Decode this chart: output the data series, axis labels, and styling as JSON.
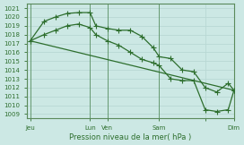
{
  "title": "Pression niveau de la mer( hPa )",
  "bg_color": "#cce8e4",
  "grid_color": "#b8d8d4",
  "line_color": "#2d6e2d",
  "spine_color": "#5a8a5a",
  "ylim": [
    1008.5,
    1021.5
  ],
  "yticks": [
    1009,
    1010,
    1011,
    1012,
    1013,
    1014,
    1015,
    1016,
    1017,
    1018,
    1019,
    1020,
    1021
  ],
  "xlim": [
    0,
    18
  ],
  "xtick_positions": [
    0.3,
    5.5,
    7.0,
    11.5,
    15.5,
    18.0
  ],
  "xtick_labels": [
    "Jeu",
    "Lun",
    "Ven",
    "Sam",
    "",
    "Dim"
  ],
  "vline_positions": [
    0.3,
    5.5,
    7.0,
    11.5,
    18.0
  ],
  "line1_x": [
    0.3,
    1.5,
    2.5,
    3.5,
    4.5,
    5.5,
    6.0,
    7.0,
    8.0,
    9.0,
    10.0,
    11.0,
    11.5,
    12.5,
    13.5,
    14.5,
    15.5,
    16.5,
    17.5,
    18.0
  ],
  "line1_y": [
    1017.3,
    1019.5,
    1020.0,
    1020.4,
    1020.5,
    1020.5,
    1019.0,
    1018.7,
    1018.5,
    1018.5,
    1017.8,
    1016.5,
    1015.5,
    1015.3,
    1014.0,
    1013.8,
    1012.0,
    1011.5,
    1012.5,
    1011.7
  ],
  "line2_x": [
    0.3,
    1.5,
    2.5,
    3.5,
    4.5,
    5.5,
    6.0,
    7.0,
    8.0,
    9.0,
    10.0,
    11.0,
    11.5,
    12.5,
    13.5,
    14.5,
    15.5,
    16.5,
    17.5,
    18.0
  ],
  "line2_y": [
    1017.3,
    1018.0,
    1018.5,
    1019.0,
    1019.2,
    1018.8,
    1018.0,
    1017.3,
    1016.8,
    1016.0,
    1015.2,
    1014.8,
    1014.5,
    1013.0,
    1012.8,
    1012.8,
    1009.5,
    1009.3,
    1009.5,
    1011.7
  ],
  "line3_x": [
    0.3,
    18.0
  ],
  "line3_y": [
    1017.3,
    1011.7
  ],
  "marker_style": "+",
  "marker_size": 4,
  "line_width": 0.9
}
